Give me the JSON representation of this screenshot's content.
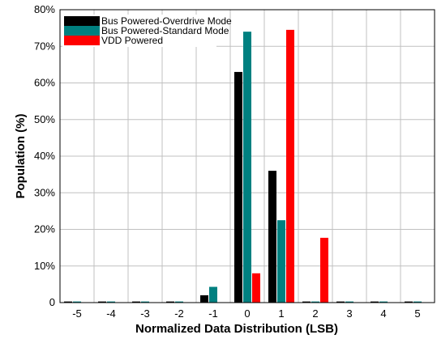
{
  "chart_data": {
    "type": "bar",
    "title": "",
    "xlabel": "Normalized Data Distribution (LSB)",
    "ylabel": "Population (%)",
    "categories": [
      "-5",
      "-4",
      "-3",
      "-2",
      "-1",
      "0",
      "1",
      "2",
      "3",
      "4",
      "5"
    ],
    "ylim": [
      0,
      80
    ],
    "yticks": [
      "0",
      "10%",
      "20%",
      "30%",
      "40%",
      "50%",
      "60%",
      "70%",
      "80%"
    ],
    "grid": true,
    "legend_position": "top-left",
    "series": [
      {
        "name": "Bus Powered-Overdrive Mode",
        "color": "#000000",
        "values": [
          0.3,
          0.3,
          0.3,
          0.3,
          2.0,
          63.0,
          36.0,
          0.3,
          0.3,
          0.3,
          0.3
        ]
      },
      {
        "name": "Bus Powered-Standard Mode",
        "color": "#008080",
        "values": [
          0.3,
          0.3,
          0.3,
          0.3,
          4.3,
          74.0,
          22.5,
          0.3,
          0.3,
          0.3,
          0.3
        ]
      },
      {
        "name": "VDD Powered",
        "color": "#ff0000",
        "values": [
          0,
          0,
          0,
          0,
          0,
          8.0,
          74.5,
          17.7,
          0,
          0,
          0
        ]
      }
    ]
  }
}
